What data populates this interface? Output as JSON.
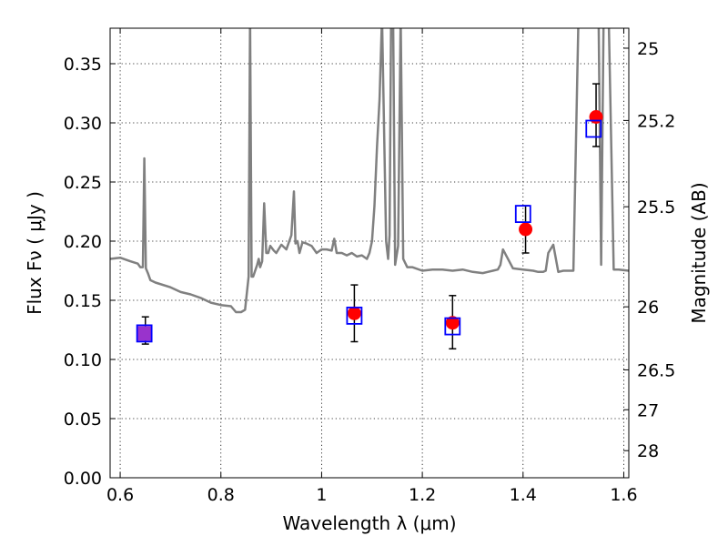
{
  "chart_data": {
    "type": "scatter",
    "xlabel": "Wavelength  λ (μm)",
    "ylabel": "Flux  Fν  ( μJy )",
    "ylabel_right": "Magnitude (AB)",
    "xlim": [
      0.58,
      1.61
    ],
    "ylim": [
      0.0,
      0.38
    ],
    "x_ticks": [
      0.6,
      0.8,
      1.0,
      1.2,
      1.4,
      1.6
    ],
    "x_tick_labels": [
      "0.6",
      "0.8",
      "1",
      "1.2",
      "1.4",
      "1.6"
    ],
    "y_ticks": [
      0.0,
      0.05,
      0.1,
      0.15,
      0.2,
      0.25,
      0.3,
      0.35
    ],
    "y_tick_labels": [
      "0.00",
      "0.05",
      "0.10",
      "0.15",
      "0.20",
      "0.25",
      "0.30",
      "0.35"
    ],
    "right_ticks": [
      {
        "flux": 0.3631,
        "label": "25"
      },
      {
        "flux": 0.302,
        "label": "25.2"
      },
      {
        "flux": 0.2291,
        "label": "25.5"
      },
      {
        "flux": 0.1445,
        "label": "26"
      },
      {
        "flux": 0.0912,
        "label": "26.5"
      },
      {
        "flux": 0.0575,
        "label": "27"
      },
      {
        "flux": 0.0229,
        "label": "28"
      }
    ],
    "grid": true,
    "colors": {
      "model": "#808080",
      "observed": "#ff0000",
      "model_flux": "#0000ff",
      "errorbar": "#000000",
      "overlap": "#9933cc"
    },
    "series": [
      {
        "kind": "line",
        "x": [
          0.58,
          0.6,
          0.62,
          0.635,
          0.64,
          0.645,
          0.648,
          0.651,
          0.655,
          0.66,
          0.67,
          0.7,
          0.72,
          0.74,
          0.76,
          0.78,
          0.8,
          0.82,
          0.83,
          0.84,
          0.848,
          0.855,
          0.858,
          0.861,
          0.864,
          0.868,
          0.872,
          0.875,
          0.878,
          0.882,
          0.886,
          0.89,
          0.894,
          0.898,
          0.905,
          0.91,
          0.92,
          0.93,
          0.94,
          0.945,
          0.948,
          0.952,
          0.956,
          0.962,
          0.97,
          0.98,
          0.99,
          1.0,
          1.01,
          1.02,
          1.025,
          1.03,
          1.04,
          1.05,
          1.06,
          1.07,
          1.08,
          1.09,
          1.095,
          1.1,
          1.105,
          1.11,
          1.115,
          1.12,
          1.128,
          1.132,
          1.135,
          1.138,
          1.142,
          1.146,
          1.152,
          1.157,
          1.162,
          1.17,
          1.18,
          1.2,
          1.22,
          1.24,
          1.26,
          1.28,
          1.3,
          1.32,
          1.33,
          1.34,
          1.35,
          1.355,
          1.36,
          1.38,
          1.4,
          1.42,
          1.43,
          1.44,
          1.445,
          1.45,
          1.46,
          1.47,
          1.48,
          1.49,
          1.5,
          1.51,
          1.52,
          1.525,
          1.53,
          1.535,
          1.54,
          1.545,
          1.55,
          1.555,
          1.56,
          1.565,
          1.57,
          1.58,
          1.59,
          1.61
        ],
        "y": [
          0.185,
          0.186,
          0.183,
          0.181,
          0.178,
          0.178,
          0.27,
          0.177,
          0.173,
          0.167,
          0.165,
          0.161,
          0.157,
          0.155,
          0.152,
          0.148,
          0.146,
          0.145,
          0.14,
          0.14,
          0.142,
          0.17,
          0.39,
          0.17,
          0.17,
          0.175,
          0.18,
          0.185,
          0.178,
          0.183,
          0.232,
          0.19,
          0.19,
          0.196,
          0.192,
          0.19,
          0.197,
          0.193,
          0.205,
          0.242,
          0.198,
          0.2,
          0.19,
          0.199,
          0.198,
          0.196,
          0.19,
          0.193,
          0.193,
          0.192,
          0.202,
          0.19,
          0.19,
          0.188,
          0.19,
          0.187,
          0.188,
          0.185,
          0.19,
          0.2,
          0.23,
          0.28,
          0.32,
          0.39,
          0.2,
          0.185,
          0.205,
          0.39,
          0.39,
          0.18,
          0.196,
          0.39,
          0.185,
          0.178,
          0.178,
          0.175,
          0.176,
          0.176,
          0.175,
          0.176,
          0.174,
          0.173,
          0.174,
          0.175,
          0.176,
          0.18,
          0.193,
          0.177,
          0.176,
          0.175,
          0.174,
          0.174,
          0.175,
          0.19,
          0.197,
          0.174,
          0.175,
          0.175,
          0.175,
          0.39,
          0.39,
          0.39,
          0.39,
          0.39,
          0.39,
          0.39,
          0.39,
          0.18,
          0.39,
          0.39,
          0.39,
          0.176,
          0.176,
          0.175
        ]
      },
      {
        "kind": "points",
        "name_key": "observed",
        "x": [
          0.65,
          1.065,
          1.26,
          1.405,
          1.545
        ],
        "y": [
          0.124,
          0.139,
          0.131,
          0.21,
          0.305
        ],
        "err_low": [
          0.011,
          0.024,
          0.022,
          0.02,
          0.025
        ],
        "err_high": [
          0.012,
          0.024,
          0.023,
          0.02,
          0.028
        ]
      },
      {
        "kind": "squares",
        "name_key": "model_flux",
        "x": [
          0.648,
          1.065,
          1.26,
          1.4,
          1.54
        ],
        "y": [
          0.122,
          0.137,
          0.128,
          0.223,
          0.295
        ]
      }
    ]
  }
}
